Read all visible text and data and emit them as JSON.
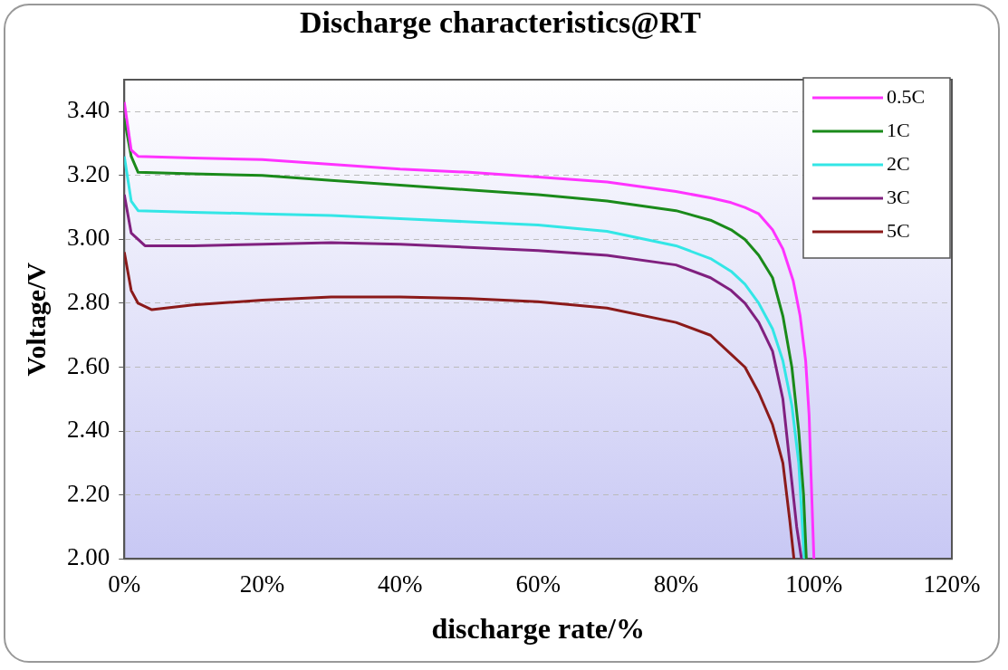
{
  "chart_data": {
    "type": "line",
    "title": "Discharge characteristics@RT",
    "xlabel": "discharge rate/%",
    "ylabel": "Voltage/V",
    "xlim": [
      0,
      120
    ],
    "xticks": [
      {
        "value": 0,
        "label": "0%"
      },
      {
        "value": 20,
        "label": "20%"
      },
      {
        "value": 40,
        "label": "40%"
      },
      {
        "value": 60,
        "label": "60%"
      },
      {
        "value": 80,
        "label": "80%"
      },
      {
        "value": 100,
        "label": "100%"
      },
      {
        "value": 120,
        "label": "120%"
      }
    ],
    "ylim": [
      2,
      3.5
    ],
    "yticks": [
      {
        "value": 2,
        "label": "2.00"
      },
      {
        "value": 2.2,
        "label": "2.20"
      },
      {
        "value": 2.4,
        "label": "2.40"
      },
      {
        "value": 2.6,
        "label": "2.60"
      },
      {
        "value": 2.8,
        "label": "2.80"
      },
      {
        "value": 3,
        "label": "3.00"
      },
      {
        "value": 3.2,
        "label": "3.20"
      },
      {
        "value": 3.4,
        "label": "3.40"
      }
    ],
    "grid": "y",
    "legend": "top right",
    "marker": "none",
    "line_style": "solid",
    "series": [
      {
        "name": "0.5C",
        "color": "#ff33ff",
        "x": [
          0,
          1,
          2,
          10,
          20,
          30,
          40,
          50,
          60,
          70,
          80,
          85,
          88,
          90,
          92,
          94,
          95.5,
          97,
          98,
          98.8,
          99.3,
          99.6,
          100
        ],
        "values": [
          3.43,
          3.28,
          3.26,
          3.255,
          3.25,
          3.235,
          3.22,
          3.21,
          3.195,
          3.18,
          3.15,
          3.13,
          3.115,
          3.1,
          3.08,
          3.03,
          2.97,
          2.87,
          2.76,
          2.62,
          2.45,
          2.25,
          2.0
        ]
      },
      {
        "name": "1C",
        "color": "#1a8a1a",
        "x": [
          0,
          1,
          2,
          10,
          20,
          30,
          40,
          50,
          60,
          70,
          80,
          85,
          88,
          90,
          92,
          94,
          95.5,
          96.8,
          97.8,
          98.5,
          98.9
        ],
        "values": [
          3.38,
          3.26,
          3.21,
          3.205,
          3.2,
          3.185,
          3.17,
          3.155,
          3.14,
          3.12,
          3.09,
          3.06,
          3.03,
          3.0,
          2.95,
          2.88,
          2.76,
          2.6,
          2.4,
          2.2,
          2.0
        ]
      },
      {
        "name": "2C",
        "color": "#33e6e6",
        "x": [
          0,
          1,
          2,
          10,
          20,
          30,
          40,
          50,
          60,
          70,
          80,
          85,
          88,
          90,
          92,
          94,
          95.5,
          96.8,
          97.8,
          98.6
        ],
        "values": [
          3.26,
          3.12,
          3.09,
          3.085,
          3.08,
          3.075,
          3.065,
          3.055,
          3.045,
          3.025,
          2.98,
          2.94,
          2.9,
          2.86,
          2.8,
          2.72,
          2.62,
          2.48,
          2.3,
          2.0
        ]
      },
      {
        "name": "3C",
        "color": "#80207f",
        "x": [
          0,
          1,
          3,
          10,
          20,
          30,
          40,
          50,
          60,
          70,
          80,
          85,
          88,
          90,
          92,
          94,
          95.5,
          96.8,
          97.5,
          98.2
        ],
        "values": [
          3.14,
          3.02,
          2.98,
          2.98,
          2.985,
          2.99,
          2.985,
          2.975,
          2.965,
          2.95,
          2.92,
          2.88,
          2.84,
          2.8,
          2.74,
          2.65,
          2.5,
          2.24,
          2.1,
          2.0
        ]
      },
      {
        "name": "5C",
        "color": "#8b1a1a",
        "x": [
          0,
          1,
          2,
          4,
          10,
          20,
          30,
          40,
          50,
          60,
          70,
          80,
          85,
          88,
          90,
          92,
          94,
          95.5,
          96.5,
          97.1
        ],
        "values": [
          2.96,
          2.84,
          2.8,
          2.78,
          2.795,
          2.81,
          2.82,
          2.82,
          2.815,
          2.805,
          2.785,
          2.74,
          2.7,
          2.64,
          2.6,
          2.52,
          2.42,
          2.3,
          2.12,
          2.0
        ]
      }
    ]
  }
}
